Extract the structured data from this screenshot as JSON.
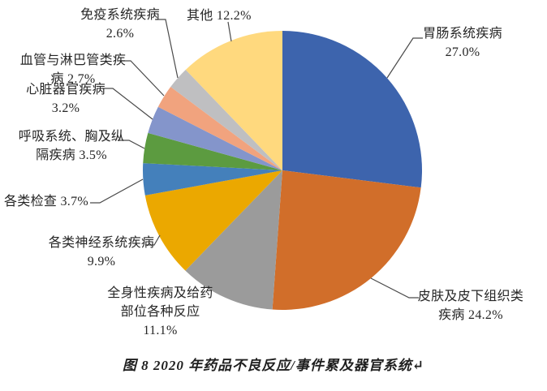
{
  "chart_data": {
    "type": "pie",
    "title": "图 8  2020 年药品不良反应/事件累及器官系统",
    "categories": [
      "胃肠系统疾病",
      "皮肤及皮下组织类疾病",
      "全身性疾病及给药部位各种反应",
      "各类神经系统疾病",
      "各类检查",
      "呼吸系统、胸及纵隔疾病",
      "心脏器官疾病",
      "血管与淋巴管类疾病",
      "免疫系统疾病",
      "其他"
    ],
    "values": [
      27.0,
      24.2,
      11.1,
      9.9,
      3.7,
      3.5,
      3.2,
      2.7,
      2.6,
      12.2
    ],
    "unit": "%",
    "colors": [
      "#3D64AD",
      "#D16E2A",
      "#9B9B9B",
      "#EBA800",
      "#4480BB",
      "#5C9B40",
      "#8495CB",
      "#F1A37E",
      "#BFBFC1",
      "#FFD97E"
    ],
    "start_angle_deg": 0,
    "direction": "clockwise",
    "labels_position": "outside-callouts",
    "leader_line_color": "#4a4a4a",
    "legend": "none"
  },
  "labels": [
    {
      "lines": [
        "胃肠系统疾病",
        "27.0%"
      ]
    },
    {
      "lines": [
        "皮肤及皮下组织类",
        "疾病 24.2%"
      ]
    },
    {
      "lines": [
        "全身性疾病及给药",
        "部位各种反应",
        "11.1%"
      ]
    },
    {
      "lines": [
        "各类神经系统疾病",
        "9.9%"
      ]
    },
    {
      "lines": [
        "各类检查 3.7%"
      ]
    },
    {
      "lines": [
        "呼吸系统、胸及纵",
        "隔疾病 3.5%"
      ]
    },
    {
      "lines": [
        "心脏器官疾病",
        "3.2%"
      ]
    },
    {
      "lines": [
        "血管与淋巴管类疾",
        "病 2.7%"
      ]
    },
    {
      "lines": [
        "免疫系统疾病",
        "2.6%"
      ]
    },
    {
      "lines": [
        "其他 12.2%"
      ]
    }
  ],
  "caption": {
    "text": "图 8  2020 年药品不良反应/事件累及器官系统↵"
  }
}
